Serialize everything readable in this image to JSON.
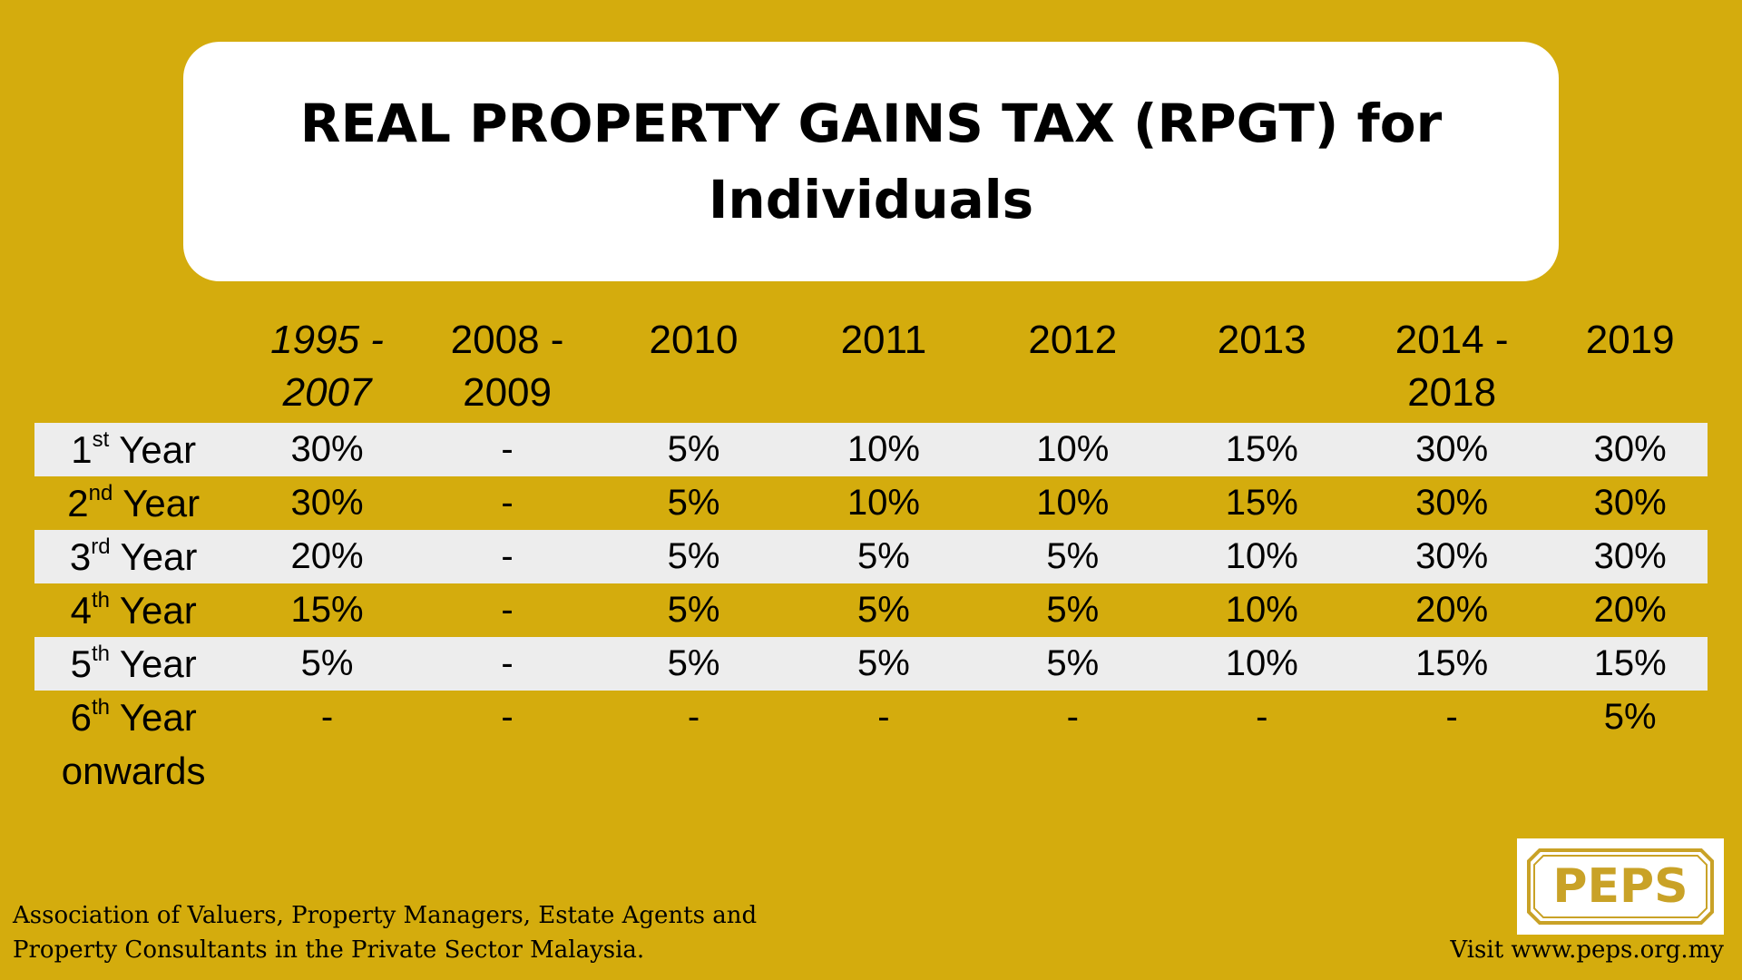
{
  "title": "REAL PROPERTY GAINS TAX (RPGT) for Individuals",
  "colors": {
    "background": "#D4AC0D",
    "band": "#EDEDED",
    "logo_gold": "#C9A227"
  },
  "table": {
    "columns": [
      {
        "line1": "1995 -",
        "line2": "2007",
        "italic": true
      },
      {
        "line1": "2008 -",
        "line2": "2009"
      },
      {
        "line1": "2010",
        "line2": ""
      },
      {
        "line1": "2011",
        "line2": ""
      },
      {
        "line1": "2012",
        "line2": ""
      },
      {
        "line1": "2013",
        "line2": ""
      },
      {
        "line1": "2014 -",
        "line2": "2018"
      },
      {
        "line1": "2019",
        "line2": ""
      }
    ],
    "rows": [
      {
        "num": "1",
        "sup": "st",
        "rest": " Year",
        "extra": "",
        "values": [
          "30%",
          "-",
          "5%",
          "10%",
          "10%",
          "15%",
          "30%",
          "30%"
        ]
      },
      {
        "num": "2",
        "sup": "nd",
        "rest": " Year",
        "extra": "",
        "values": [
          "30%",
          "-",
          "5%",
          "10%",
          "10%",
          "15%",
          "30%",
          "30%"
        ]
      },
      {
        "num": "3",
        "sup": "rd",
        "rest": " Year",
        "extra": "",
        "values": [
          "20%",
          "-",
          "5%",
          "5%",
          "5%",
          "10%",
          "30%",
          "30%"
        ]
      },
      {
        "num": "4",
        "sup": "th",
        "rest": " Year",
        "extra": "",
        "values": [
          "15%",
          "-",
          "5%",
          "5%",
          "5%",
          "10%",
          "20%",
          "20%"
        ]
      },
      {
        "num": "5",
        "sup": "th",
        "rest": " Year",
        "extra": "",
        "values": [
          "5%",
          "-",
          "5%",
          "5%",
          "5%",
          "10%",
          "15%",
          "15%"
        ]
      },
      {
        "num": "6",
        "sup": "th",
        "rest": " Year",
        "extra": "onwards",
        "values": [
          "-",
          "-",
          "-",
          "-",
          "-",
          "-",
          "-",
          "5%"
        ]
      }
    ]
  },
  "footer": {
    "org_line1": "Association of Valuers, Property Managers, Estate Agents and",
    "org_line2": "Property Consultants in the Private Sector Malaysia.",
    "visit": "Visit www.peps.org.my"
  },
  "logo": {
    "text": "PEPS"
  }
}
